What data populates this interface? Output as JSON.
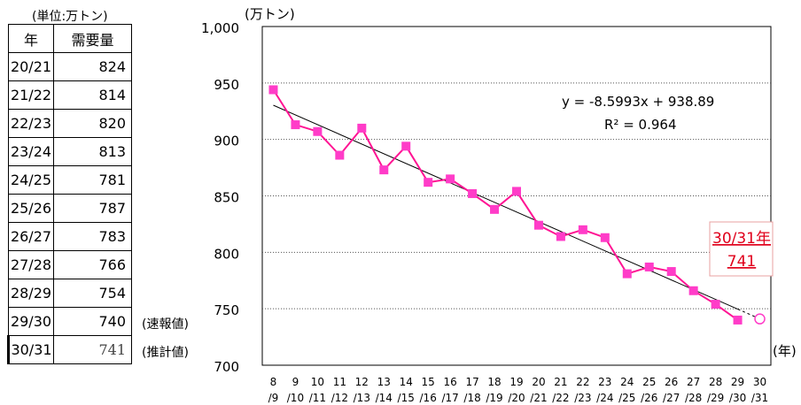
{
  "table": {
    "unit_note": "(単位:万トン)",
    "header_year": "年",
    "header_demand": "需要量",
    "rows": [
      {
        "year": "20/21",
        "value": "824",
        "note": ""
      },
      {
        "year": "21/22",
        "value": "814",
        "note": ""
      },
      {
        "year": "22/23",
        "value": "820",
        "note": ""
      },
      {
        "year": "23/24",
        "value": "813",
        "note": ""
      },
      {
        "year": "24/25",
        "value": "781",
        "note": ""
      },
      {
        "year": "25/26",
        "value": "787",
        "note": ""
      },
      {
        "year": "26/27",
        "value": "783",
        "note": ""
      },
      {
        "year": "27/28",
        "value": "766",
        "note": ""
      },
      {
        "year": "28/29",
        "value": "754",
        "note": ""
      },
      {
        "year": "29/30",
        "value": "740",
        "note": "(速報値)"
      },
      {
        "year": "30/31",
        "value": "741",
        "note": "(推計値)"
      }
    ]
  },
  "chart_data": {
    "type": "line",
    "ylabel": "(万トン)",
    "xlabel": "(年)",
    "ylim": [
      700,
      1000
    ],
    "yticks": [
      "700",
      "750",
      "800",
      "850",
      "900",
      "950",
      "1,000"
    ],
    "grid": true,
    "x_top": [
      "8",
      "9",
      "10",
      "11",
      "12",
      "13",
      "14",
      "15",
      "16",
      "17",
      "18",
      "19",
      "20",
      "21",
      "22",
      "23",
      "24",
      "25",
      "26",
      "27",
      "28",
      "29",
      "30"
    ],
    "x_bottom": [
      "/9",
      "/10",
      "/11",
      "/12",
      "/13",
      "/14",
      "/15",
      "/16",
      "/17",
      "/18",
      "/19",
      "/20",
      "/21",
      "/22",
      "/23",
      "/24",
      "/25",
      "/26",
      "/27",
      "/28",
      "/29",
      "/30",
      "/31"
    ],
    "series": [
      {
        "values": [
          944,
          913,
          907,
          886,
          910,
          873,
          894,
          862,
          865,
          852,
          838,
          854,
          824,
          814,
          820,
          813,
          781,
          787,
          783,
          766,
          754,
          740
        ]
      }
    ],
    "estimate": {
      "x": "30/31",
      "value": 741
    },
    "trendline": {
      "slope": -8.5993,
      "intercept": 938.89
    },
    "equation": "y = -8.5993x + 938.89",
    "r2": "R² = 0.964",
    "callout_line1": "30/31年",
    "callout_line2": "741",
    "colors": {
      "series": "#ff1493",
      "marker": "#ff3cc8",
      "trend": "#000000",
      "callout": "#e0001b"
    }
  }
}
